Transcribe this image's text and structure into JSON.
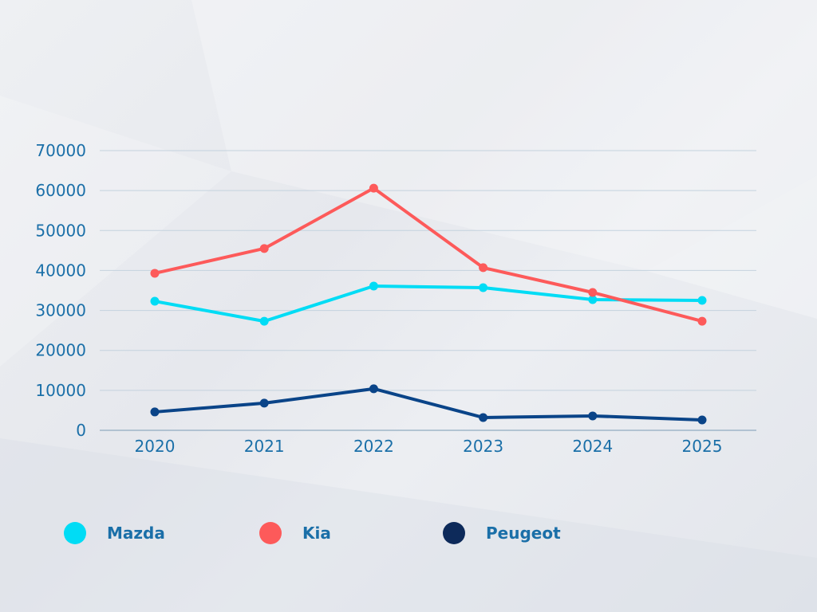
{
  "chart_data": {
    "type": "line",
    "title": "",
    "xlabel": "",
    "ylabel": "",
    "categories": [
      "2020",
      "2021",
      "2022",
      "2023",
      "2024",
      "2025"
    ],
    "ylim": [
      0,
      70000
    ],
    "yticks": [
      0,
      10000,
      20000,
      30000,
      40000,
      50000,
      60000,
      70000
    ],
    "grid": true,
    "legend_position": "bottom",
    "series": [
      {
        "name": "Mazda",
        "color": "#00dcf5",
        "values": [
          32300,
          27300,
          36100,
          35700,
          32700,
          32500
        ]
      },
      {
        "name": "Kia",
        "color": "#fd5a5a",
        "values": [
          39300,
          45500,
          60600,
          40700,
          34500,
          27300
        ]
      },
      {
        "name": "Peugeot",
        "color": "#0a4488",
        "legend_color": "#0d2a5a",
        "values": [
          4600,
          6800,
          10400,
          3200,
          3600,
          2600
        ]
      }
    ],
    "axis_text_color": "#1a6fa8",
    "grid_color": "#c4d2de"
  }
}
